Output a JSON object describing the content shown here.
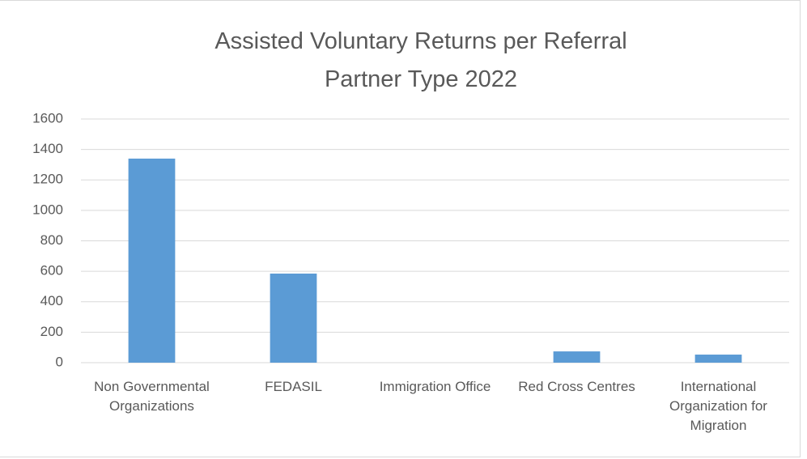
{
  "chart_data": {
    "type": "bar",
    "title": "Assisted Voluntary Returns per Referral Partner Type 2022",
    "categories": [
      "Non Governmental Organizations",
      "FEDASIL",
      "Immigration Office",
      "Red Cross Centres",
      "International Organization for Migration"
    ],
    "values": [
      1340,
      585,
      0,
      74,
      53
    ],
    "color": "#5b9bd5",
    "ylim": [
      0,
      1600
    ],
    "yticks": [
      0,
      200,
      400,
      600,
      800,
      1000,
      1200,
      1400,
      1600
    ],
    "grid": true
  }
}
